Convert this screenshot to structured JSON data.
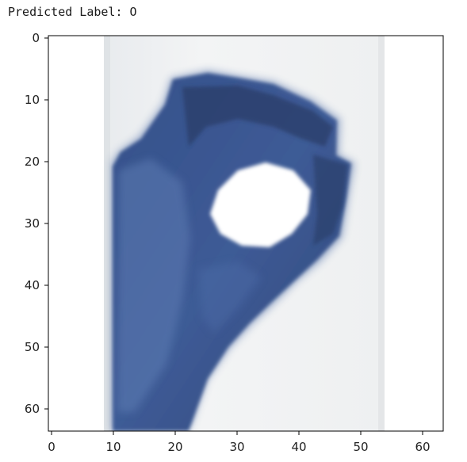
{
  "output": {
    "text": "Predicted Label: O"
  },
  "plot": {
    "image_subject": "hand-sign-o-icon",
    "x_ticks": [
      "0",
      "10",
      "20",
      "30",
      "40",
      "50",
      "60"
    ],
    "y_ticks": [
      "0",
      "10",
      "20",
      "30",
      "40",
      "50",
      "60"
    ],
    "colors": {
      "background": "#f1f3f3",
      "hand_dark": "#2c3f6c",
      "hand_mid": "#3d5a93",
      "hand_light": "#5f7eb4",
      "hole": "#ffffff",
      "axes": "#000000"
    }
  }
}
